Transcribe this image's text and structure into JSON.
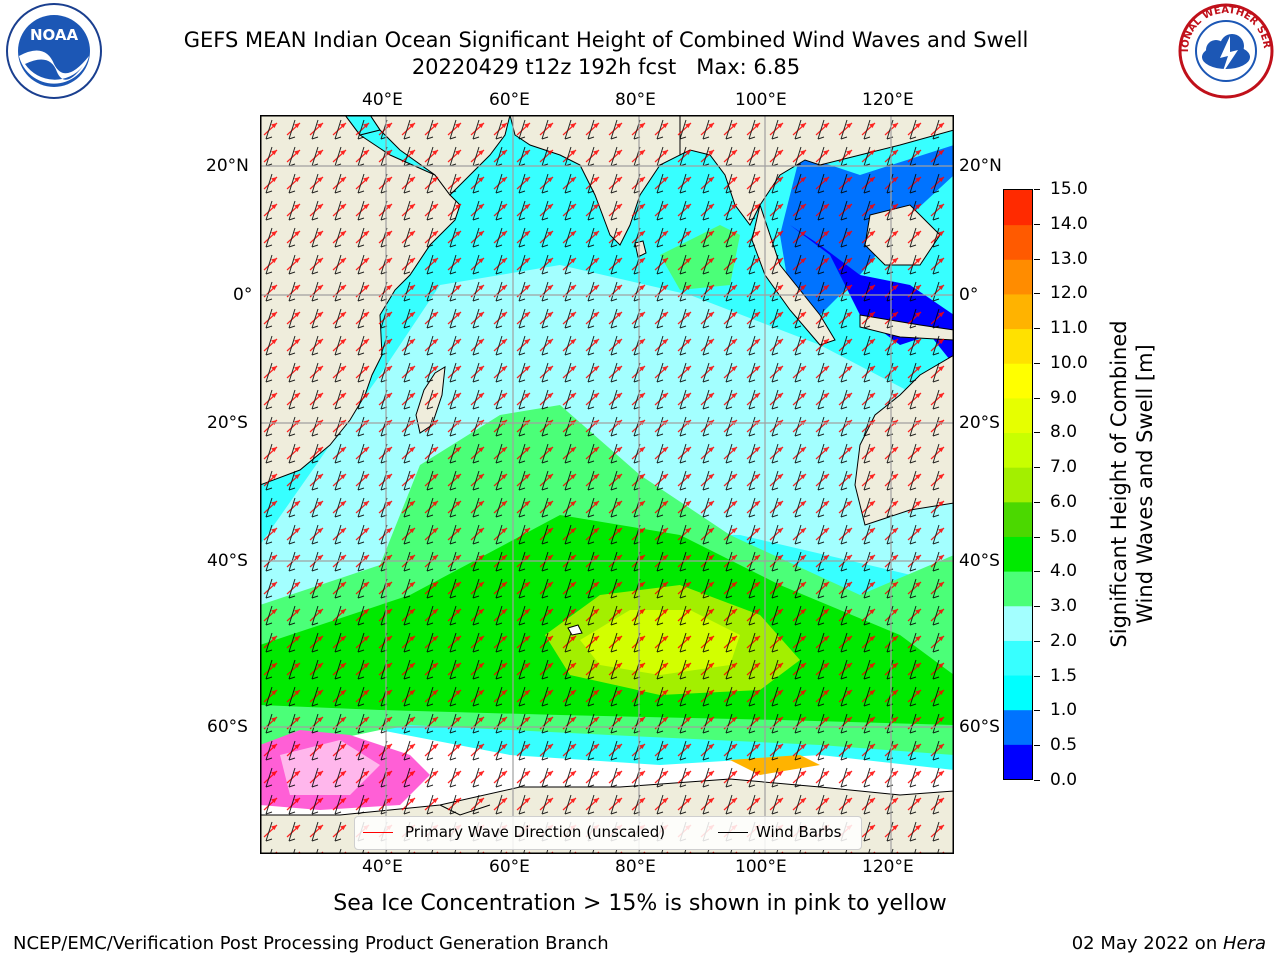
{
  "title": {
    "line1": "GEFS MEAN Indian Ocean Significant Height of Combined Wind Waves and Swell",
    "line2": "20220429 t12z 192h fcst   Max: 6.85"
  },
  "logos": {
    "left": {
      "name": "noaa-logo",
      "text": "NOAA"
    },
    "right": {
      "name": "nws-logo",
      "text": "NATIONAL WEATHER SERVICE"
    }
  },
  "map": {
    "top_lon_labels": [
      "40°E",
      "60°E",
      "80°E",
      "100°E",
      "120°E"
    ],
    "bottom_lon_labels": [
      "40°E",
      "60°E",
      "80°E",
      "100°E",
      "120°E"
    ],
    "left_lat_labels": [
      "20°N",
      "0°",
      "20°S",
      "40°S",
      "60°S"
    ],
    "right_lat_labels": [
      "20°N",
      "0°",
      "20°S",
      "40°S",
      "60°S"
    ],
    "colors": {
      "land": "#efeddc",
      "ocean_low": "#37ffff",
      "ocean_mid": "#a3ffff",
      "wave_green": "#4bff78",
      "wave_bright": "#00ea00",
      "wave_yellow": "#d2ff00",
      "ice_white": "#ffffff",
      "ice_pink": "#ff5fd6",
      "arrow": "#ff0000",
      "barb": "#000000"
    }
  },
  "legend": {
    "items": [
      {
        "label": "Primary Wave Direction (unscaled)",
        "color": "#ff0000"
      },
      {
        "label": "Wind Barbs",
        "color": "#000000"
      }
    ]
  },
  "colorbar": {
    "label_line1": "Significant Height of Combined",
    "label_line2": "Wind Waves and Swell [m]",
    "ticks": [
      "0.0",
      "0.5",
      "1.0",
      "1.5",
      "2.0",
      "3.0",
      "4.0",
      "5.0",
      "6.0",
      "7.0",
      "8.0",
      "9.0",
      "10.0",
      "11.0",
      "12.0",
      "13.0",
      "14.0",
      "15.0"
    ],
    "colors": [
      "#0000ff",
      "#0073ff",
      "#00ffff",
      "#37ffff",
      "#a3ffff",
      "#4bff78",
      "#00ea00",
      "#4bd800",
      "#a3ef00",
      "#c8ff00",
      "#e6ff00",
      "#ffff00",
      "#ffe100",
      "#ffb300",
      "#ff8c00",
      "#ff5a00",
      "#ff2a00"
    ]
  },
  "caption": "Sea Ice Concentration > 15% is shown in pink to yellow",
  "footer": {
    "left": "NCEP/EMC/Verification Post Processing Product Generation Branch",
    "right_prefix": "02 May 2022 on ",
    "right_host": "Hera"
  }
}
